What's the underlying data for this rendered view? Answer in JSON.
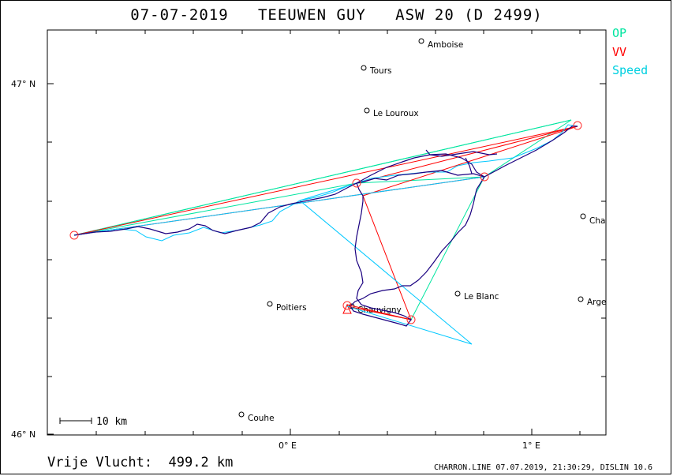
{
  "title": "07-07-2019   TEEUWEN GUY   ASW 20 (D 2499)",
  "legend": [
    {
      "label": "OP",
      "color": "#00e5a0"
    },
    {
      "label": "VV",
      "color": "#ff0000"
    },
    {
      "label": "Speed",
      "color": "#00d0e0"
    }
  ],
  "axes": {
    "lat_labels": [
      "47° N",
      "46° N"
    ],
    "lon_labels": [
      "0° E",
      "1° E"
    ]
  },
  "scale_bar": "10 km",
  "towns": [
    {
      "name": "Amboise"
    },
    {
      "name": "Tours"
    },
    {
      "name": "Le Louroux"
    },
    {
      "name": "Cha"
    },
    {
      "name": "Le Blanc"
    },
    {
      "name": "Argе"
    },
    {
      "name": "Poitiers"
    },
    {
      "name": "Chauvigny"
    },
    {
      "name": "Couhe"
    }
  ],
  "distance_text": "Vrije Vlucht:  499.2 km",
  "footer": "CHARRON.LINE 07.07.2019, 21:30:29, DISLIN 10.6",
  "colors": {
    "track": "#1a0080",
    "speed_track": "#00c8ff",
    "op": "#00e5a0",
    "vv": "#ff0000",
    "frame": "#000000"
  }
}
